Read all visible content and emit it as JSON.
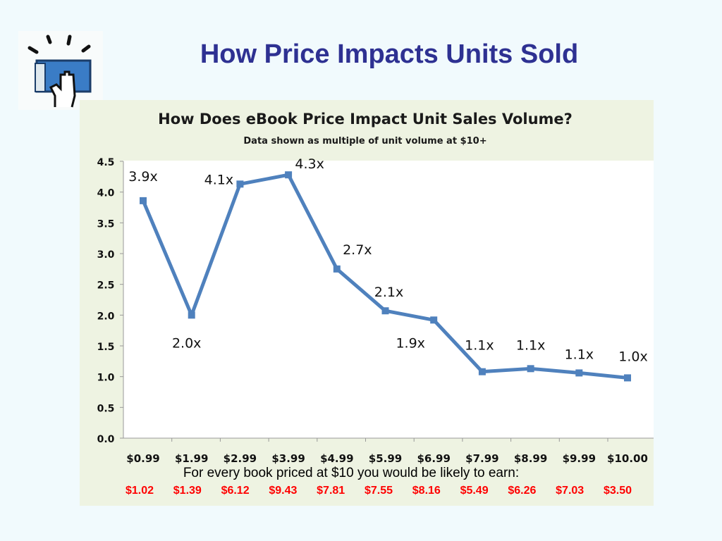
{
  "slide": {
    "title": "How Price Impacts Units Sold",
    "logo_icon": "hand-on-book-icon",
    "caption": "For every book priced at $10 you would be likely to earn:",
    "earnings": [
      "$1.02",
      "$1.39",
      "$6.12",
      "$9.43",
      "$7.81",
      "$7.55",
      "$8.16",
      "$5.49",
      "$6.26",
      "$7.03",
      "$3.50"
    ],
    "earnings_color": "#ff0000"
  },
  "chart_data": {
    "type": "line",
    "title": "How Does eBook Price Impact Unit Sales Volume?",
    "subtitle": "Data shown as multiple of unit volume at $10+",
    "categories": [
      "$0.99",
      "$1.99",
      "$2.99",
      "$3.99",
      "$4.99",
      "$5.99",
      "$6.99",
      "$7.99",
      "$8.99",
      "$9.99",
      "$10.00"
    ],
    "values": [
      3.86,
      2.0,
      4.13,
      4.28,
      2.75,
      2.07,
      1.92,
      1.08,
      1.13,
      1.06,
      0.98
    ],
    "data_labels": [
      "3.9x",
      "2.0x",
      "4.1x",
      "4.3x",
      "2.7x",
      "2.1x",
      "1.9x",
      "1.1x",
      "1.1x",
      "1.1x",
      "1.0x"
    ],
    "yticks": [
      "0.0",
      "0.5",
      "1.0",
      "1.5",
      "2.0",
      "2.5",
      "3.0",
      "3.5",
      "4.0",
      "4.5"
    ],
    "ylim": [
      0,
      4.5
    ],
    "grid": false,
    "legend": "none",
    "series_color": "#4f81bd"
  }
}
